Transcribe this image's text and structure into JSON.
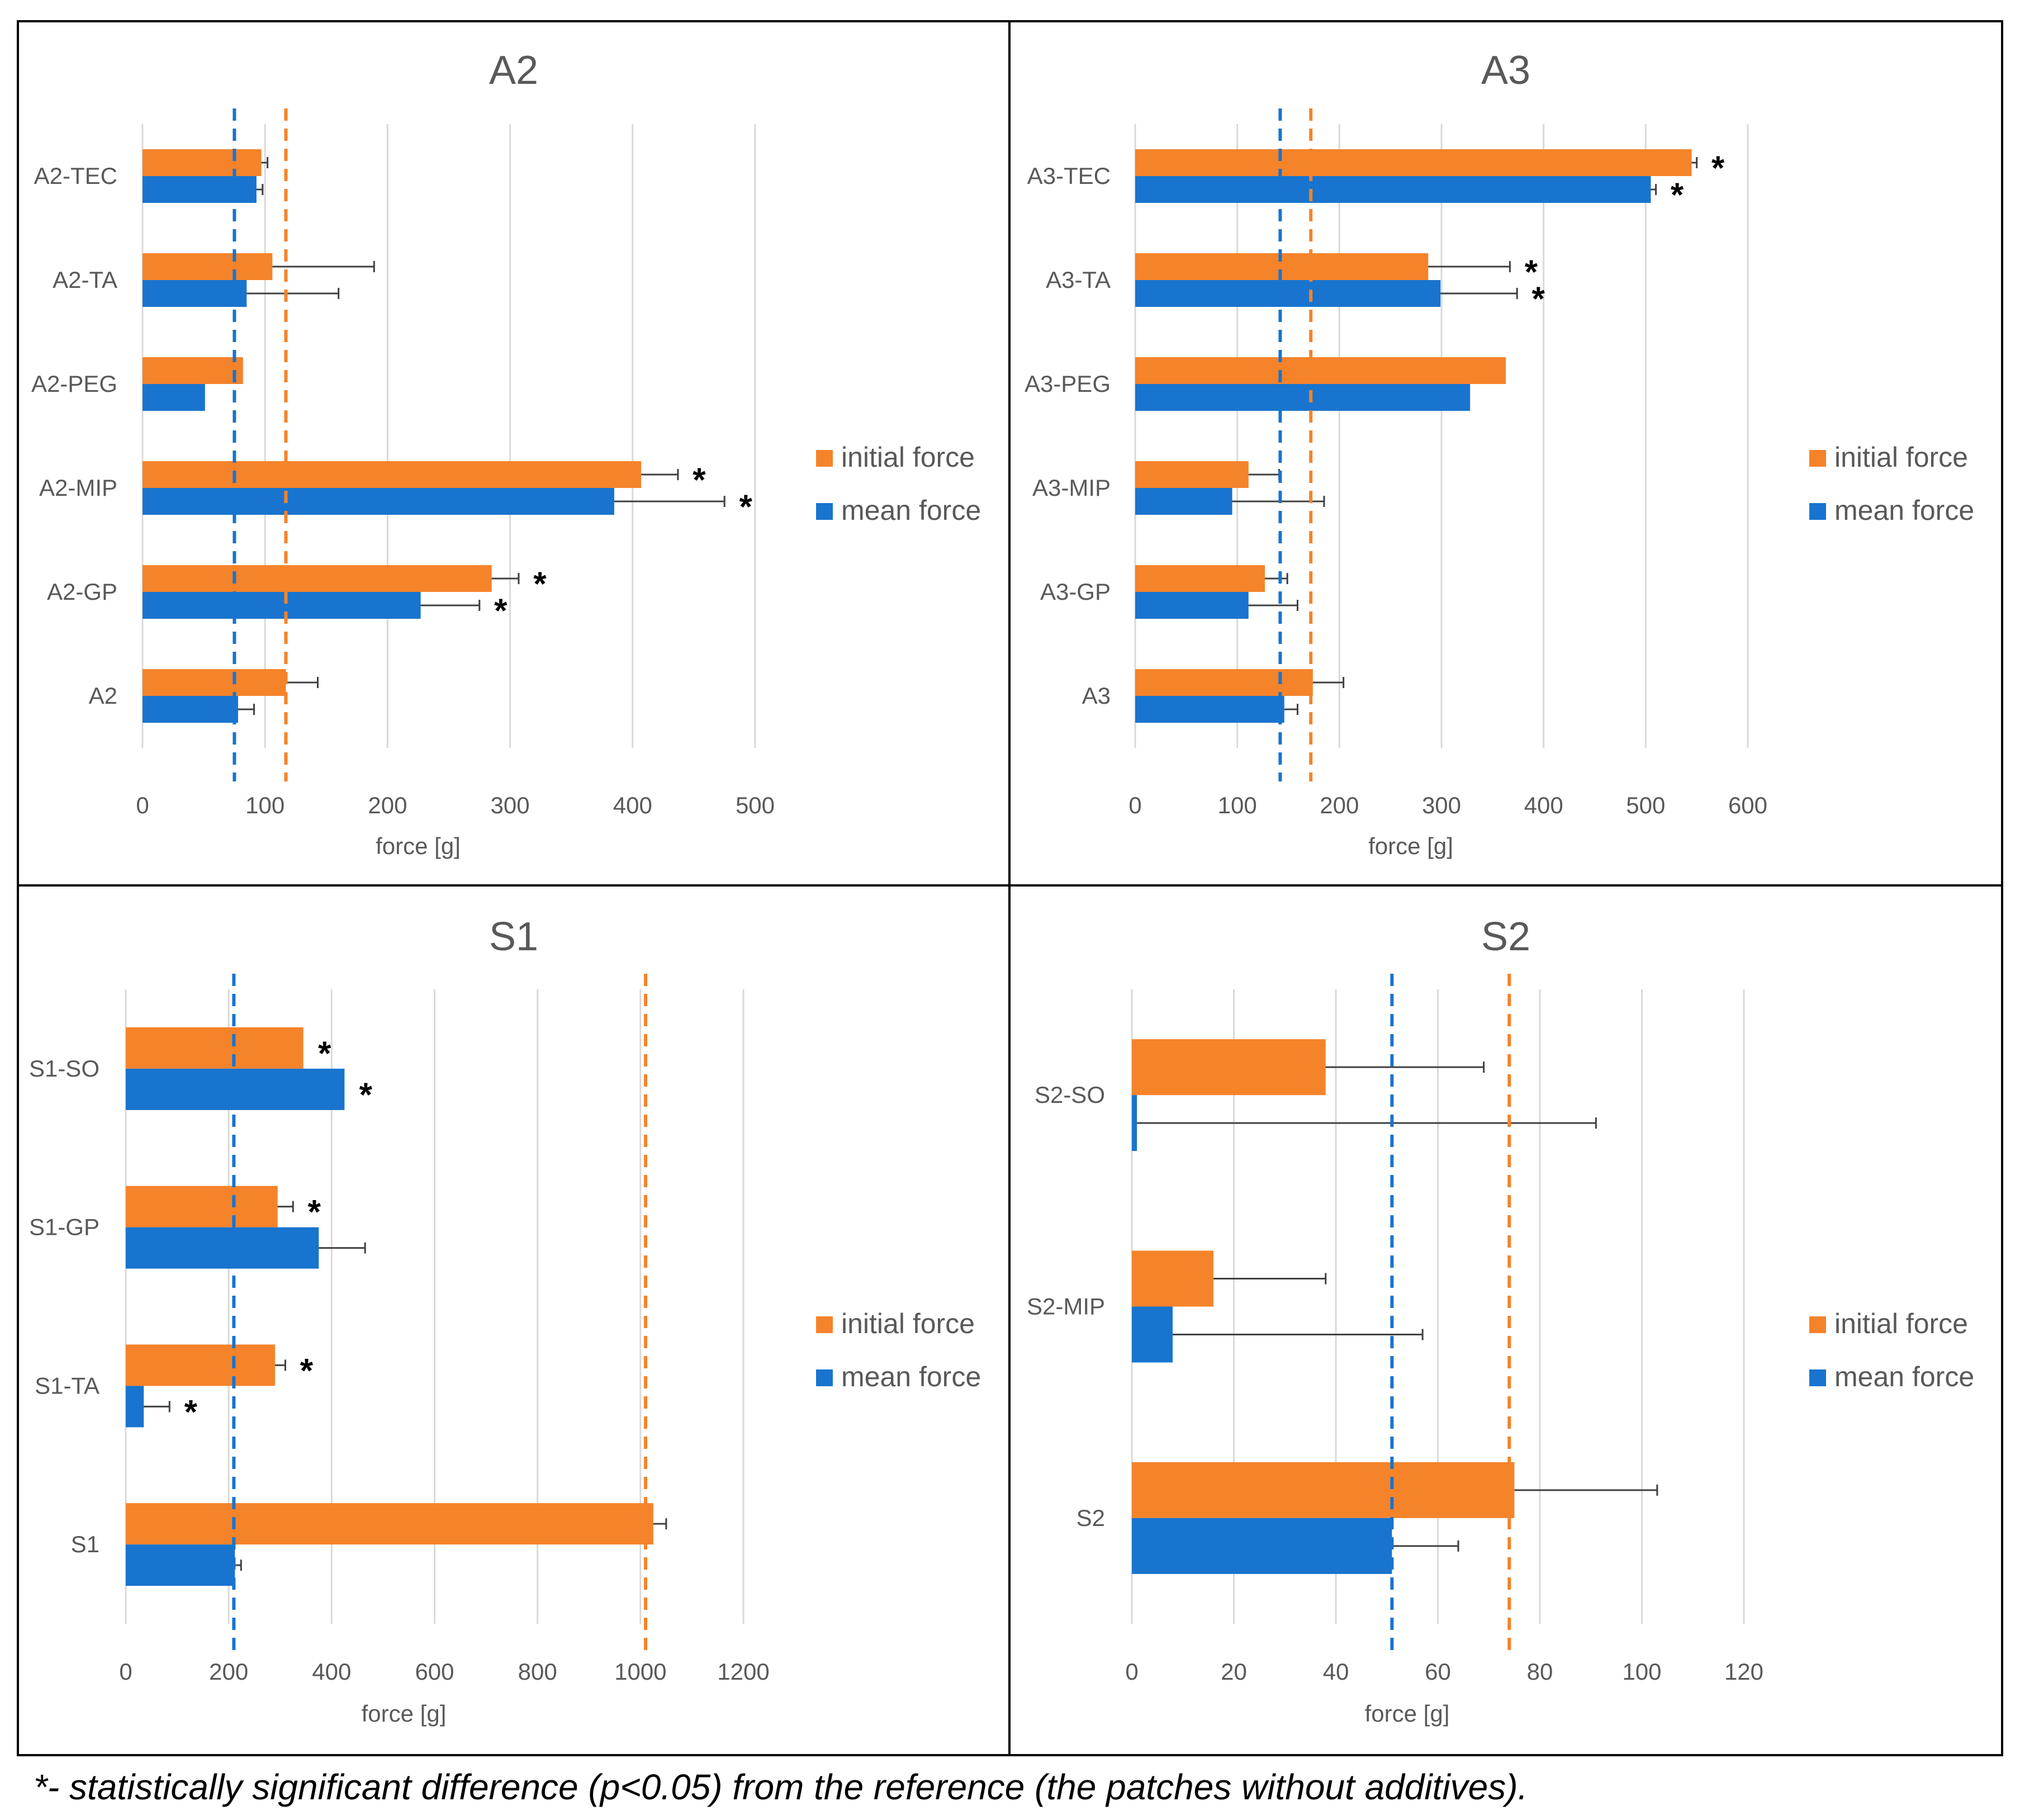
{
  "colors": {
    "initial": "#F5832A",
    "mean": "#1874CE",
    "grid": "#D9D9D9",
    "text": "#595959",
    "error_bar": "#404040",
    "border": "#000000"
  },
  "footnote": "*- statistically significant difference (p<0.05) from the reference (the patches without additives).",
  "chart_data": [
    {
      "type": "bar",
      "orientation": "horizontal",
      "title": "A2",
      "xlabel": "force [g]",
      "xlim": [
        0,
        500
      ],
      "xticks": [
        0,
        100,
        200,
        300,
        400,
        500
      ],
      "categories": [
        "A2-TEC",
        "A2-TA",
        "A2-PEG",
        "A2-MIP",
        "A2-GP",
        "A2"
      ],
      "series": [
        {
          "name": "initial force",
          "values": [
            97,
            106,
            82,
            407,
            285,
            117
          ],
          "errors": [
            5,
            83,
            0,
            30,
            22,
            26
          ],
          "significant": [
            false,
            false,
            false,
            true,
            true,
            false
          ]
        },
        {
          "name": "mean force",
          "values": [
            93,
            85,
            51,
            385,
            227,
            78
          ],
          "errors": [
            5,
            75,
            0,
            90,
            48,
            13
          ],
          "significant": [
            false,
            false,
            false,
            true,
            true,
            false
          ]
        }
      ],
      "reference_lines": [
        {
          "series": "mean force",
          "value": 75
        },
        {
          "series": "initial force",
          "value": 117
        }
      ]
    },
    {
      "type": "bar",
      "orientation": "horizontal",
      "title": "A3",
      "xlabel": "force [g]",
      "xlim": [
        0,
        600
      ],
      "xticks": [
        0,
        100,
        200,
        300,
        400,
        500,
        600
      ],
      "categories": [
        "A3-TEC",
        "A3-TA",
        "A3-PEG",
        "A3-MIP",
        "A3-GP",
        "A3"
      ],
      "series": [
        {
          "name": "initial force",
          "values": [
            545,
            287,
            363,
            111,
            127,
            174
          ],
          "errors": [
            5,
            80,
            0,
            30,
            22,
            30
          ],
          "significant": [
            true,
            true,
            false,
            false,
            false,
            false
          ]
        },
        {
          "name": "mean force",
          "values": [
            505,
            299,
            328,
            95,
            111,
            146
          ],
          "errors": [
            5,
            75,
            0,
            90,
            48,
            13
          ],
          "significant": [
            true,
            true,
            false,
            false,
            false,
            false
          ]
        }
      ],
      "reference_lines": [
        {
          "series": "mean force",
          "value": 142
        },
        {
          "series": "initial force",
          "value": 172
        }
      ]
    },
    {
      "type": "bar",
      "orientation": "horizontal",
      "title": "S1",
      "xlabel": "force [g]",
      "xlim": [
        0,
        1200
      ],
      "xticks": [
        0,
        200,
        400,
        600,
        800,
        1000,
        1200
      ],
      "categories": [
        "S1-SO",
        "S1-GP",
        "S1-TA",
        "S1"
      ],
      "series": [
        {
          "name": "initial force",
          "values": [
            345,
            295,
            290,
            1025
          ],
          "errors": [
            0,
            30,
            20,
            25
          ],
          "significant": [
            true,
            true,
            true,
            false
          ]
        },
        {
          "name": "mean force",
          "values": [
            425,
            375,
            35,
            212
          ],
          "errors": [
            0,
            90,
            50,
            12
          ],
          "significant": [
            true,
            false,
            true,
            false
          ]
        }
      ],
      "reference_lines": [
        {
          "series": "mean force",
          "value": 210
        },
        {
          "series": "initial force",
          "value": 1010
        }
      ]
    },
    {
      "type": "bar",
      "orientation": "horizontal",
      "title": "S2",
      "xlabel": "force [g]",
      "xlim": [
        0,
        120
      ],
      "xticks": [
        0,
        20,
        40,
        60,
        80,
        100,
        120
      ],
      "categories": [
        "S2-SO",
        "S2-MIP",
        "S2"
      ],
      "series": [
        {
          "name": "initial force",
          "values": [
            38,
            16,
            75
          ],
          "errors": [
            31,
            22,
            28
          ],
          "significant": [
            false,
            false,
            false
          ]
        },
        {
          "name": "mean force",
          "values": [
            1,
            8,
            51
          ],
          "errors": [
            90,
            49,
            13
          ],
          "significant": [
            false,
            false,
            false
          ]
        }
      ],
      "reference_lines": [
        {
          "series": "mean force",
          "value": 51
        },
        {
          "series": "initial force",
          "value": 74
        }
      ]
    }
  ]
}
